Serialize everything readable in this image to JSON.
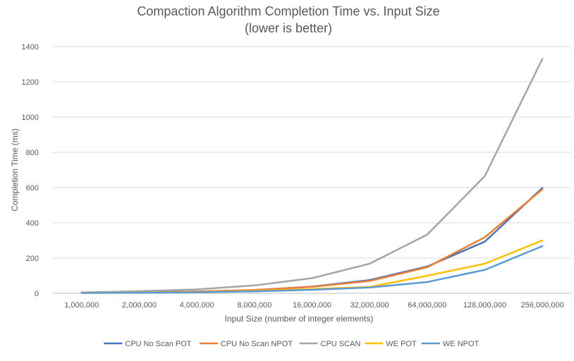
{
  "chart_data": {
    "type": "line",
    "title": "Compaction Algorithm Completion Time vs. Input Size",
    "subtitle": "(lower is better)",
    "xlabel": "Input Size (number of integer elements)",
    "ylabel": "Completion Time (ms)",
    "categories": [
      "1,000,000",
      "2,000,000",
      "4,000,000",
      "8,000,000",
      "16,000,000",
      "32,000,000",
      "64,000,000",
      "128,000,000",
      "256,000,000"
    ],
    "ylim": [
      0,
      1400
    ],
    "yticks": [
      "0",
      "200",
      "400",
      "600",
      "800",
      "1000",
      "1200",
      "1400"
    ],
    "grid": true,
    "legend_position": "bottom",
    "series": [
      {
        "name": "CPU No Scan POT",
        "color": "#4472c4",
        "values": [
          3,
          5,
          10,
          18,
          38,
          75,
          152,
          293,
          598
        ]
      },
      {
        "name": "CPU No Scan NPOT",
        "color": "#ed7d31",
        "values": [
          3,
          5,
          10,
          19,
          37,
          70,
          148,
          318,
          590
        ]
      },
      {
        "name": "CPU SCAN",
        "color": "#a5a5a5",
        "values": [
          5,
          12,
          22,
          45,
          86,
          168,
          333,
          665,
          1330
        ]
      },
      {
        "name": "WE POT",
        "color": "#ffc000",
        "values": [
          2,
          4,
          7,
          14,
          24,
          36,
          100,
          168,
          300
        ]
      },
      {
        "name": "WE NPOT",
        "color": "#5b9bd5",
        "values": [
          2,
          3,
          6,
          11,
          20,
          33,
          64,
          133,
          268
        ]
      }
    ]
  }
}
